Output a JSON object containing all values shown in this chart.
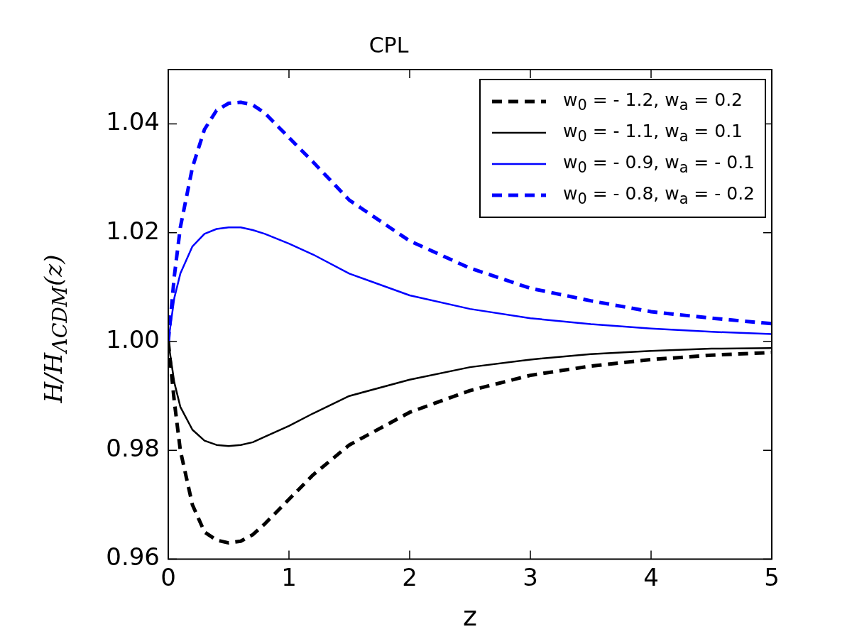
{
  "chart_data": {
    "type": "line",
    "title": "CPL",
    "xlabel": "z",
    "ylabel": "H/H$_{ΛCDM}$(z)",
    "xlim": [
      0,
      5
    ],
    "xticks": [
      0,
      1,
      2,
      3,
      4,
      5
    ],
    "ylim": [
      0.96,
      1.05
    ],
    "yticks": [
      0.96,
      0.98,
      {
        "value": 1,
        "label": "1.00"
      },
      1.02,
      1.04
    ],
    "grid": false,
    "legend": "top right",
    "marker": "none",
    "x": [
      0,
      0.05,
      0.1,
      0.2,
      0.3,
      0.4,
      0.5,
      0.6,
      0.7,
      0.8,
      1.0,
      1.2,
      1.5,
      2.0,
      2.5,
      3.0,
      3.5,
      4.0,
      4.5,
      5.0
    ],
    "series": [
      {
        "name": "w$_{0}$ = - 1.2, w$_{a}$ = 0.2",
        "color": "#000000",
        "line_style": "dashed",
        "values": [
          1.0,
          0.989,
          0.98,
          0.97,
          0.965,
          0.9635,
          0.963,
          0.9633,
          0.9645,
          0.9665,
          0.971,
          0.9755,
          0.981,
          0.987,
          0.991,
          0.9938,
          0.9955,
          0.9967,
          0.9975,
          0.998
        ]
      },
      {
        "name": "w$_{0}$ = - 1.1, w$_{a}$ = 0.1",
        "color": "#000000",
        "line_style": "solid",
        "values": [
          1.0,
          0.9925,
          0.988,
          0.9838,
          0.9818,
          0.981,
          0.9808,
          0.981,
          0.9815,
          0.9825,
          0.9845,
          0.9868,
          0.99,
          0.993,
          0.9953,
          0.9967,
          0.9977,
          0.9983,
          0.9987,
          0.9988
        ]
      },
      {
        "name": "w$_{0}$ = - 0.9, w$_{a}$ = - 0.1",
        "color": "#0000ff",
        "line_style": "solid",
        "values": [
          1.0,
          1.008,
          1.0125,
          1.0175,
          1.0198,
          1.0207,
          1.021,
          1.021,
          1.0205,
          1.0198,
          1.018,
          1.016,
          1.0125,
          1.0085,
          1.006,
          1.0043,
          1.0032,
          1.0024,
          1.0018,
          1.0014
        ]
      },
      {
        "name": "w$_{0}$ = - 0.8, w$_{a}$ = - 0.2",
        "color": "#0000ff",
        "line_style": "dashed",
        "values": [
          1.0,
          1.012,
          1.021,
          1.032,
          1.039,
          1.0425,
          1.0438,
          1.044,
          1.0435,
          1.042,
          1.0375,
          1.033,
          1.026,
          1.0185,
          1.0135,
          1.0098,
          1.0075,
          1.0055,
          1.0043,
          1.0033
        ]
      }
    ]
  }
}
